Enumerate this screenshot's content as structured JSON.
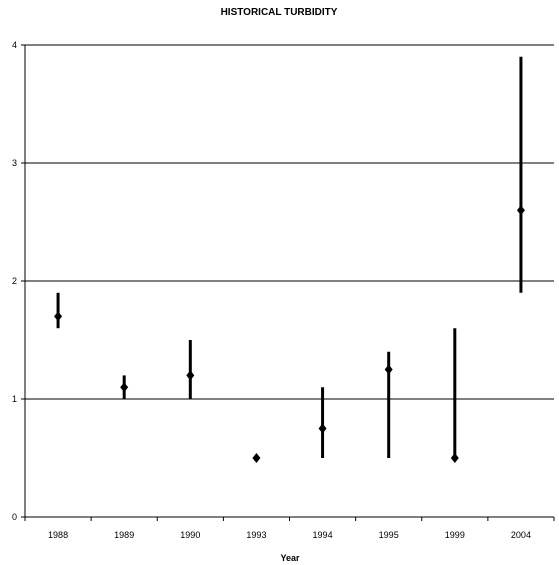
{
  "chart_data": {
    "type": "scatter",
    "title": "HISTORICAL TURBIDITY",
    "xlabel": "Year",
    "ylabel": "",
    "categories": [
      "1988",
      "1989",
      "1990",
      "1993",
      "1994",
      "1995",
      "1999",
      "2004"
    ],
    "series": [
      {
        "values": [
          1.7,
          1.1,
          1.2,
          0.5,
          0.75,
          1.25,
          0.5,
          2.6
        ],
        "low": [
          1.6,
          1.0,
          1.0,
          0.5,
          0.5,
          0.5,
          0.5,
          1.9
        ],
        "high": [
          1.9,
          1.2,
          1.5,
          0.5,
          1.1,
          1.4,
          1.6,
          3.9
        ]
      }
    ],
    "ylim": [
      0,
      4
    ],
    "yticks": [
      0,
      1,
      2,
      3,
      4
    ],
    "grid": "horizontal",
    "marker": "diamond",
    "colors": {
      "marker": "#000000",
      "grid": "#000000"
    }
  }
}
